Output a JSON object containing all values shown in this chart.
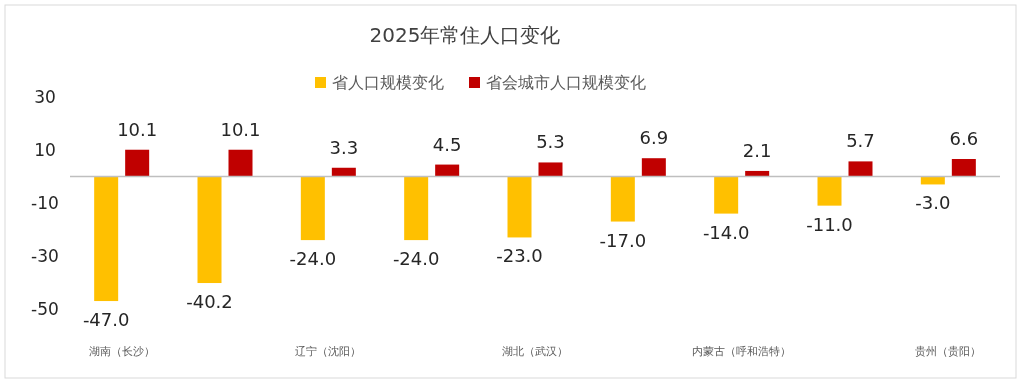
{
  "chart_data": {
    "type": "bar",
    "title": "2025年常住人口变化",
    "categories": [
      "湖南（长沙）",
      null,
      "辽宁（沈阳）",
      null,
      "湖北（武汉）",
      null,
      "内蒙古（呼和浩特）",
      null,
      "贵州（贵阳）"
    ],
    "series": [
      {
        "name": "省人口规模变化",
        "color": "#ffc000",
        "values": [
          -47.0,
          -40.2,
          -24.0,
          -24.0,
          -23.0,
          -17.0,
          -14.0,
          -11.0,
          -3.0
        ],
        "value_labels": [
          "-47.0",
          "-40.2",
          "-24.0",
          "-24.0",
          "-23.0",
          "-17.0",
          "-14.0",
          "-11.0",
          "-3.0"
        ]
      },
      {
        "name": "省会城市人口规模变化",
        "color": "#c00000",
        "values": [
          10.1,
          10.1,
          3.3,
          4.5,
          5.3,
          6.9,
          2.1,
          5.7,
          6.6
        ],
        "value_labels": [
          "10.1",
          "10.1",
          "3.3",
          "4.5",
          "5.3",
          "6.9",
          "2.1",
          "5.7",
          "6.6"
        ]
      }
    ],
    "ylim": [
      -50,
      30
    ],
    "yticks": [
      30,
      10,
      -10,
      -30,
      -50
    ],
    "legend": "top",
    "grid": false
  }
}
